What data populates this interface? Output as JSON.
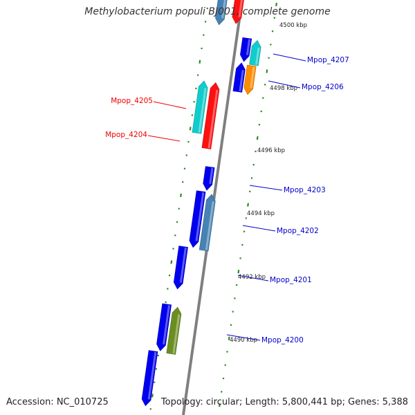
{
  "title": "Methylobacterium populi BJ001, complete genome",
  "accession": "Accession: NC_010725",
  "summary": "Topology: circular; Length: 5,800,441 bp; Genes: 5,388",
  "colors": {
    "backbone": "#7f7f7f",
    "dots": "#2e8b22",
    "label_blue": "#0000cc",
    "label_red": "#ee0000",
    "gene_blue": "#0000ee",
    "gene_cyan": "#11cccc",
    "gene_red": "#ff1010",
    "gene_orange": "#ff8c00",
    "gene_steel": "#4682b4",
    "gene_olive": "#6b8e23"
  },
  "ticks": [
    {
      "label": "4500 kbp"
    },
    {
      "label": "4498 kbp"
    },
    {
      "label": "4496 kbp"
    },
    {
      "label": "4494 kbp"
    },
    {
      "label": "4492 kbp"
    },
    {
      "label": "4490 kbp"
    }
  ],
  "gene_labels": [
    {
      "name": "Mpop_4207",
      "color": "blue"
    },
    {
      "name": "Mpop_4206",
      "color": "blue"
    },
    {
      "name": "Mpop_4205",
      "color": "red"
    },
    {
      "name": "Mpop_4204",
      "color": "red"
    },
    {
      "name": "Mpop_4203",
      "color": "blue"
    },
    {
      "name": "Mpop_4202",
      "color": "blue"
    },
    {
      "name": "Mpop_4201",
      "color": "blue"
    },
    {
      "name": "Mpop_4200",
      "color": "blue"
    }
  ]
}
